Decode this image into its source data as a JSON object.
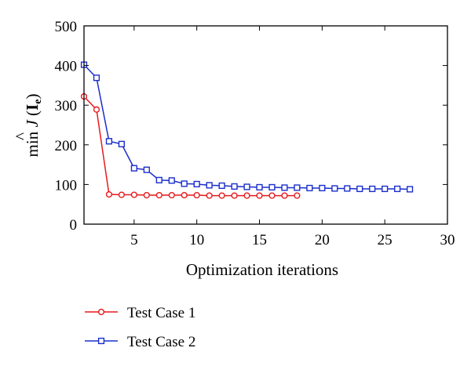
{
  "chart_data": {
    "type": "line",
    "title": "",
    "xlabel": "Optimization iterations",
    "ylabel": {
      "prefix": "min ",
      "symbol": "J",
      "hat": "^",
      "open_paren": " (",
      "arg": "I",
      "sub": "e",
      "close_paren": ")"
    },
    "xlim": [
      1,
      30
    ],
    "ylim": [
      0,
      500
    ],
    "xticks": [
      5,
      10,
      15,
      20,
      25,
      30
    ],
    "yticks": [
      0,
      100,
      200,
      300,
      400,
      500
    ],
    "grid": false,
    "legend_position": "below",
    "series": [
      {
        "name": "Test Case 1",
        "color": "#e8191c",
        "marker": "circle",
        "x": [
          1,
          2,
          3,
          4,
          5,
          6,
          7,
          8,
          9,
          10,
          11,
          12,
          13,
          14,
          15,
          16,
          17,
          18
        ],
        "y": [
          322,
          289,
          75,
          74,
          74,
          73,
          73,
          73,
          73,
          73,
          72,
          72,
          72,
          72,
          72,
          72,
          72,
          72
        ]
      },
      {
        "name": "Test Case 2",
        "color": "#1a2ecc",
        "marker": "square",
        "x": [
          1,
          2,
          3,
          4,
          5,
          6,
          7,
          8,
          9,
          10,
          11,
          12,
          13,
          14,
          15,
          16,
          17,
          18,
          19,
          20,
          21,
          22,
          23,
          24,
          25,
          26,
          27
        ],
        "y": [
          402,
          369,
          209,
          202,
          141,
          137,
          111,
          110,
          102,
          101,
          98,
          97,
          95,
          94,
          93,
          93,
          92,
          92,
          91,
          91,
          90,
          90,
          89,
          89,
          89,
          89,
          88
        ]
      }
    ]
  }
}
